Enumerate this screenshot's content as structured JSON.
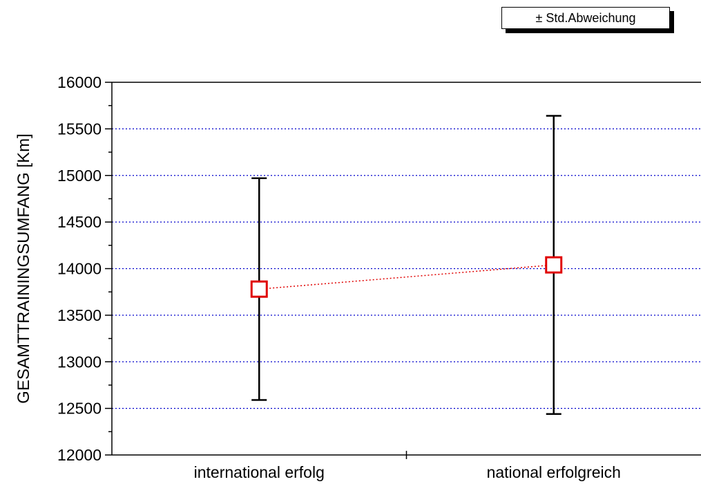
{
  "legend": {
    "label": "± Std.Abweichung"
  },
  "chart_data": {
    "type": "scatter",
    "ylabel": "GESAMTTRAININGSUMFANG [Km]",
    "xlabel": "",
    "categories": [
      "international erfolg",
      "national erfolgreich"
    ],
    "ylim": [
      12000,
      16000
    ],
    "yticks": [
      12000,
      12500,
      13000,
      13500,
      14000,
      14500,
      15000,
      15500,
      16000
    ],
    "grid": true,
    "legend_position": "top-right",
    "series": [
      {
        "mean": [
          13780,
          14040
        ],
        "sd": [
          1190,
          1600
        ]
      }
    ],
    "colors": {
      "marker": "#e00000",
      "connector": "#e00000",
      "grid": "#0000cc",
      "errorbar": "#000000"
    }
  }
}
